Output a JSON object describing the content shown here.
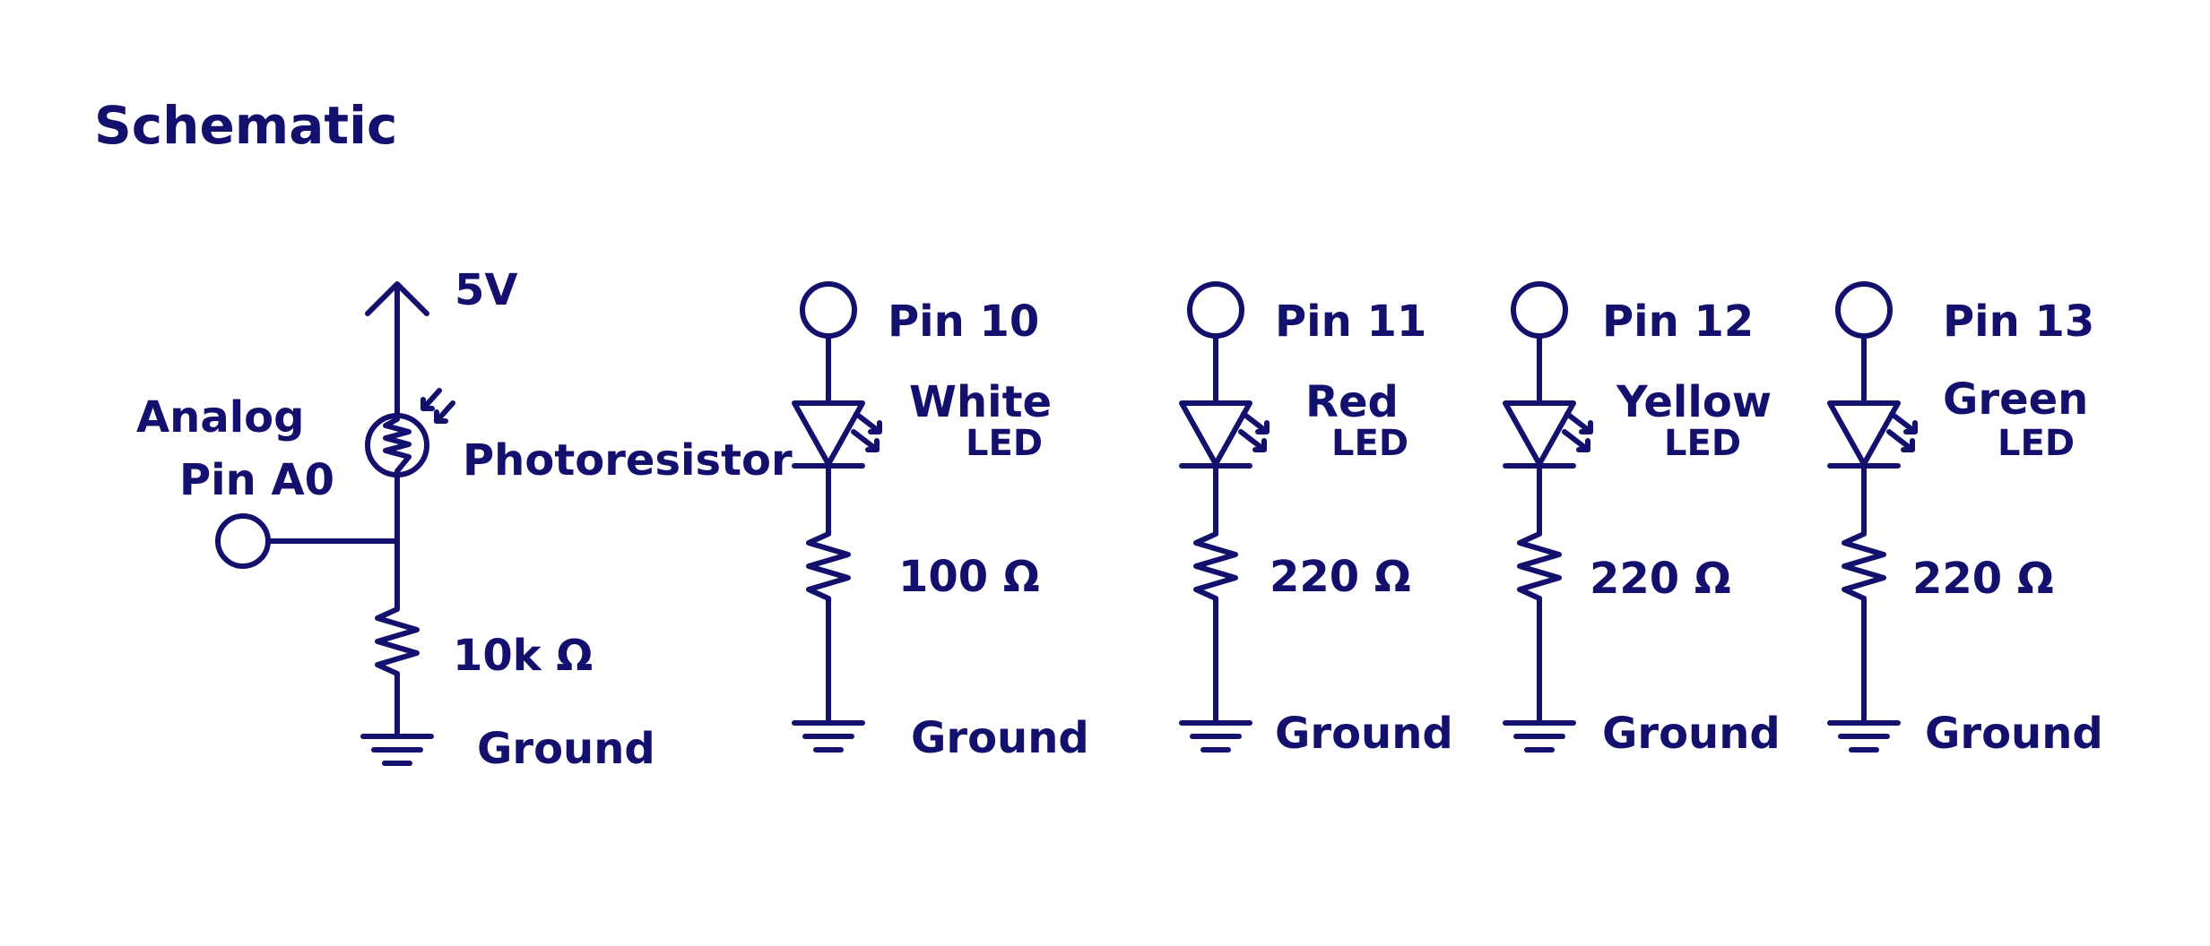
{
  "title": "Schematic",
  "sensor_circuit": {
    "supply_label": "5V",
    "input_label_line1": "Analog",
    "input_label_line2": "Pin A0",
    "sensor_label": "Photoresistor",
    "resistor_label": "10k Ω",
    "ground_label": "Ground"
  },
  "led_circuits": [
    {
      "pin_label": "Pin 10",
      "color_label": "White",
      "led_label": "LED",
      "resistor_label": "100 Ω",
      "ground_label": "Ground"
    },
    {
      "pin_label": "Pin 11",
      "color_label": "Red",
      "led_label": "LED",
      "resistor_label": "220 Ω",
      "ground_label": "Ground"
    },
    {
      "pin_label": "Pin 12",
      "color_label": "Yellow",
      "led_label": "LED",
      "resistor_label": "220 Ω",
      "ground_label": "Ground"
    },
    {
      "pin_label": "Pin 13",
      "color_label": "Green",
      "led_label": "LED",
      "resistor_label": "220 Ω",
      "ground_label": "Ground"
    }
  ],
  "colors": {
    "ink": "#13106e",
    "background": "#ffffff"
  }
}
